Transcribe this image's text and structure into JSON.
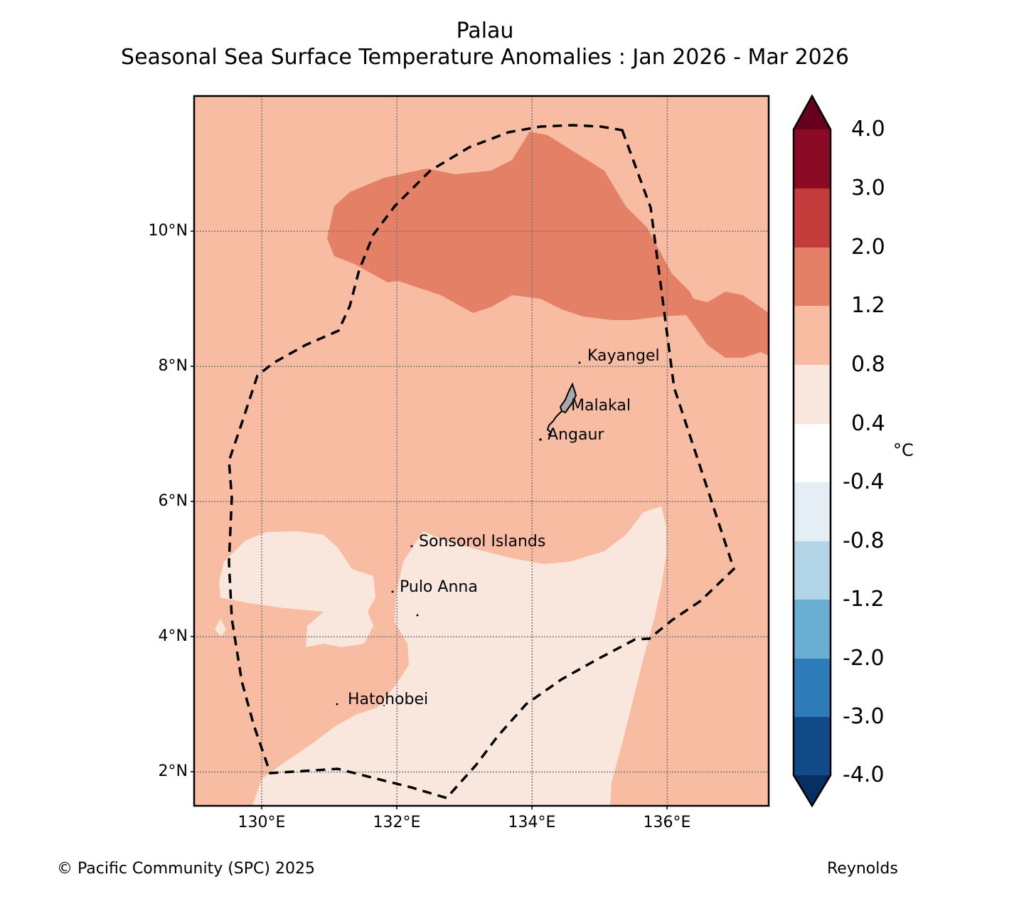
{
  "title": {
    "region": "Palau",
    "subtitle": "Seasonal Sea Surface Temperature Anomalies : Jan 2026 - Mar 2026"
  },
  "axes": {
    "latitude_labels": [
      "10°N",
      "8°N",
      "6°N",
      "4°N",
      "2°N"
    ],
    "longitude_labels": [
      "130°E",
      "132°E",
      "134°E",
      "136°E"
    ],
    "lon_range": [
      129.0,
      137.5
    ],
    "lat_range": [
      1.5,
      12.0
    ]
  },
  "places": [
    {
      "name": "Kayangel",
      "lon": 134.7,
      "lat": 8.07
    },
    {
      "name": "Malakal",
      "lon": 134.46,
      "lat": 7.33
    },
    {
      "name": "Angaur",
      "lon": 134.15,
      "lat": 6.9
    },
    {
      "name": "Sonsorol Islands",
      "lon": 132.22,
      "lat": 5.33
    },
    {
      "name": "Pulo Anna",
      "lon": 131.96,
      "lat": 4.65
    },
    {
      "name": "Hatohobei",
      "lon": 131.12,
      "lat": 3.0
    }
  ],
  "colorbar": {
    "unit": "°C",
    "tick_labels": [
      "4.0",
      "3.0",
      "2.0",
      "1.2",
      "0.8",
      "0.4",
      "-0.4",
      "-0.8",
      "-1.2",
      "-2.0",
      "-3.0",
      "-4.0"
    ],
    "colors_top_to_bottom": [
      "#67001f",
      "#8b0a26",
      "#c43b3c",
      "#e38066",
      "#f8bca3",
      "#f9e7de",
      "#ffffff",
      "#e5edf5",
      "#b1d4e7",
      "#6aaed4",
      "#2f7cba",
      "#124a87",
      "#053061"
    ]
  },
  "map_colors": {
    "anomaly_0_8_to_1_2": "#f8bca3",
    "anomaly_1_2_to_2_0": "#e38066",
    "anomaly_0_4_to_0_8": "#f9e7de",
    "land": "#a9a9a9"
  },
  "footer": {
    "copyright": "© Pacific Community (SPC) 2025",
    "source": "Reynolds"
  }
}
